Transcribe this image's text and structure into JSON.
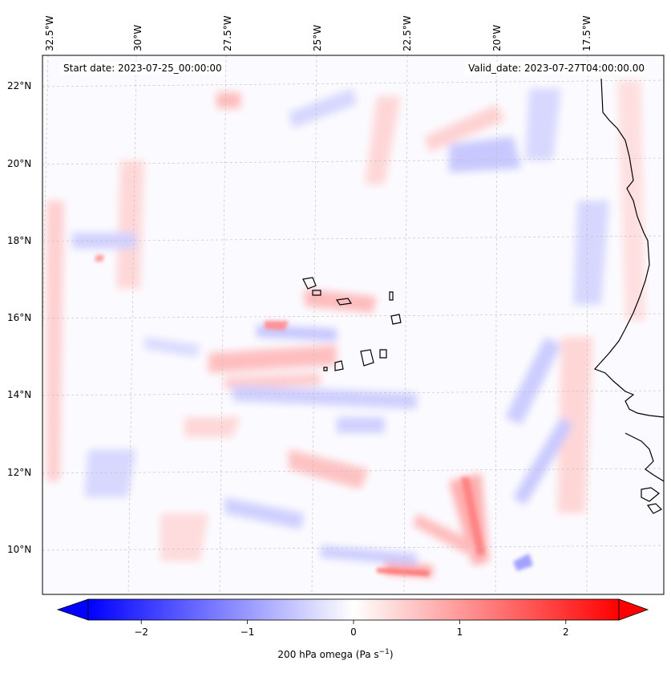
{
  "header": {
    "start_date": "Start date: 2023-07-25_00:00:00",
    "valid_date": "Valid_date: 2023-07-27T04:00:00.00"
  },
  "axes": {
    "lon_ticks": [
      "32.5°W",
      "30°W",
      "27.5°W",
      "25°W",
      "22.5°W",
      "20°W",
      "17.5°W"
    ],
    "lat_ticks": [
      "22°N",
      "20°N",
      "18°N",
      "16°N",
      "14°N",
      "12°N",
      "10°N"
    ]
  },
  "colorbar": {
    "title": "200 hPa omega (Pa s",
    "title_sup": "−1",
    "title_end": ")",
    "ticks": [
      "−2",
      "−1",
      "0",
      "1",
      "2"
    ],
    "tick_values": [
      -2,
      -1,
      0,
      1,
      2
    ],
    "range": [
      -2.5,
      2.5
    ],
    "colors": {
      "min": "#0000ff",
      "mid": "#ffffff",
      "max": "#ff0000"
    }
  },
  "map": {
    "land_outline_color": "#000000",
    "gridlines": true
  }
}
